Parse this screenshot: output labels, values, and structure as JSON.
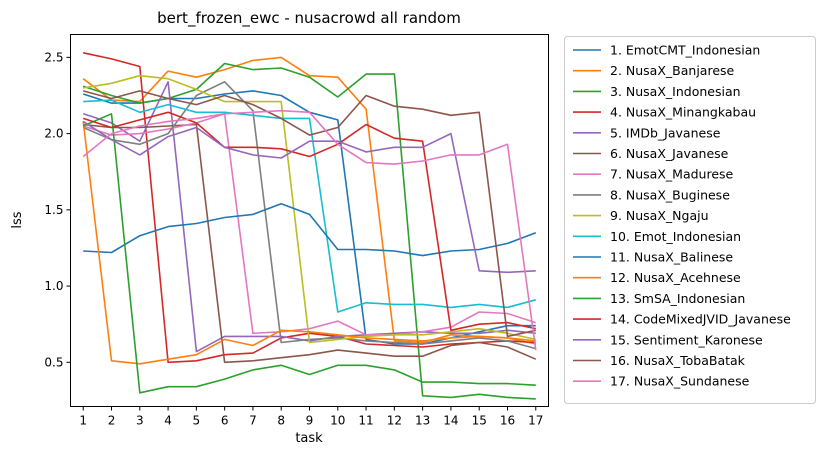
{
  "chart_data": {
    "type": "line",
    "title": "bert_frozen_ewc - nusacrowd all random",
    "xlabel": "task",
    "ylabel": "lss",
    "x": [
      1,
      2,
      3,
      4,
      5,
      6,
      7,
      8,
      9,
      10,
      11,
      12,
      13,
      14,
      15,
      16,
      17
    ],
    "xlim": [
      0.55,
      17.45
    ],
    "ylim": [
      0.21,
      2.65
    ],
    "yticks": [
      0.5,
      1.0,
      1.5,
      2.0,
      2.5
    ],
    "yticklabels": [
      "0.5",
      "1.0",
      "1.5",
      "2.0",
      "2.5"
    ],
    "xticklabels": [
      "1",
      "2",
      "3",
      "4",
      "5",
      "6",
      "7",
      "8",
      "9",
      "10",
      "11",
      "12",
      "13",
      "14",
      "15",
      "16",
      "17"
    ],
    "grid": false,
    "legend_placement": "outside-right",
    "series": [
      {
        "name": "1. EmotCMT_Indonesian",
        "color": "#1f77b4",
        "values": [
          2.26,
          2.2,
          2.2,
          2.23,
          2.23,
          2.26,
          2.28,
          2.25,
          2.14,
          2.09,
          0.65,
          0.62,
          0.62,
          0.66,
          0.7,
          0.74,
          0.74
        ]
      },
      {
        "name": "2. NusaX_Banjarese",
        "color": "#ff7f0e",
        "values": [
          2.36,
          2.22,
          2.21,
          2.41,
          2.37,
          2.42,
          2.48,
          2.5,
          2.38,
          2.37,
          2.16,
          0.64,
          0.63,
          0.68,
          0.67,
          0.66,
          0.62
        ]
      },
      {
        "name": "3. NusaX_Indonesian",
        "color": "#2ca02c",
        "values": [
          2.31,
          2.25,
          2.2,
          2.23,
          2.29,
          2.46,
          2.42,
          2.43,
          2.37,
          2.24,
          2.39,
          2.39,
          0.28,
          0.27,
          0.29,
          0.27,
          0.26
        ]
      },
      {
        "name": "4. NusaX_Minangkabau",
        "color": "#d62728",
        "values": [
          2.53,
          2.49,
          2.44,
          0.5,
          0.51,
          0.55,
          0.56,
          0.66,
          0.69,
          0.67,
          0.62,
          0.61,
          0.6,
          0.62,
          0.63,
          0.64,
          0.63
        ]
      },
      {
        "name": "5. IMDb_Javanese",
        "color": "#9467bd",
        "values": [
          2.13,
          2.07,
          1.95,
          2.34,
          0.57,
          0.67,
          0.67,
          0.67,
          0.64,
          0.67,
          0.68,
          0.69,
          0.7,
          0.69,
          0.69,
          0.71,
          0.69
        ]
      },
      {
        "name": "6. NusaX_Javanese",
        "color": "#8c564b",
        "values": [
          2.06,
          2.04,
          2.04,
          2.05,
          2.06,
          0.5,
          0.51,
          0.53,
          0.55,
          0.58,
          0.56,
          0.54,
          0.54,
          0.61,
          0.63,
          0.6,
          0.52
        ]
      },
      {
        "name": "7. NusaX_Madurese",
        "color": "#e377c2",
        "values": [
          2.05,
          1.99,
          2.0,
          2.03,
          2.07,
          2.13,
          0.69,
          0.7,
          0.72,
          0.77,
          0.68,
          0.68,
          0.7,
          0.73,
          0.83,
          0.82,
          0.76
        ]
      },
      {
        "name": "8. NusaX_Buginese",
        "color": "#7f7f7f",
        "values": [
          2.04,
          1.96,
          1.93,
          2.0,
          2.25,
          2.34,
          2.15,
          0.63,
          0.65,
          0.66,
          0.64,
          0.63,
          0.62,
          0.64,
          0.66,
          0.64,
          0.59
        ]
      },
      {
        "name": "9. NusaX_Ngaju",
        "color": "#bcbd22",
        "values": [
          2.3,
          2.33,
          2.38,
          2.36,
          2.29,
          2.21,
          2.21,
          2.21,
          0.63,
          0.65,
          0.67,
          0.68,
          0.68,
          0.7,
          0.72,
          0.69,
          0.65
        ]
      },
      {
        "name": "10. Emot_Indonesian",
        "color": "#17becf",
        "values": [
          2.21,
          2.22,
          2.14,
          2.19,
          2.14,
          2.14,
          2.12,
          2.1,
          2.1,
          0.83,
          0.89,
          0.88,
          0.88,
          0.86,
          0.88,
          0.86,
          0.91
        ]
      },
      {
        "name": "11. NusaX_Balinese",
        "color": "#1f77b4",
        "values": [
          1.23,
          1.22,
          1.33,
          1.39,
          1.41,
          1.45,
          1.47,
          1.54,
          1.47,
          1.24,
          1.24,
          1.23,
          1.2,
          1.23,
          1.24,
          1.28,
          1.35
        ]
      },
      {
        "name": "12. NusaX_Acehnese",
        "color": "#ff7f0e",
        "values": [
          2.08,
          0.51,
          0.49,
          0.52,
          0.55,
          0.65,
          0.61,
          0.71,
          0.7,
          0.68,
          0.66,
          0.65,
          0.64,
          0.66,
          0.67,
          0.66,
          0.64
        ]
      },
      {
        "name": "13. SmSA_Indonesian",
        "color": "#2ca02c",
        "values": [
          2.05,
          2.13,
          0.3,
          0.34,
          0.34,
          0.39,
          0.45,
          0.48,
          0.42,
          0.48,
          0.48,
          0.45,
          0.37,
          0.37,
          0.36,
          0.36,
          0.35
        ]
      },
      {
        "name": "14. CodeMixedJVID_Javanese",
        "color": "#d62728",
        "values": [
          2.1,
          2.04,
          2.09,
          2.14,
          2.07,
          1.91,
          1.91,
          1.9,
          1.85,
          1.93,
          2.06,
          1.97,
          1.95,
          0.71,
          0.75,
          0.76,
          0.72
        ]
      },
      {
        "name": "15. Sentiment_Karonese",
        "color": "#9467bd",
        "values": [
          2.08,
          1.96,
          1.86,
          1.98,
          2.04,
          1.91,
          1.86,
          1.84,
          1.95,
          1.95,
          1.88,
          1.91,
          1.91,
          2.0,
          1.1,
          1.09,
          1.1
        ]
      },
      {
        "name": "16. NusaX_TobaBatak",
        "color": "#8c564b",
        "values": [
          2.28,
          2.23,
          2.28,
          2.23,
          2.19,
          2.25,
          2.19,
          2.1,
          1.99,
          2.04,
          2.25,
          2.18,
          2.16,
          2.12,
          2.14,
          0.67,
          0.71
        ]
      },
      {
        "name": "17. NusaX_Sundanese",
        "color": "#e377c2",
        "values": [
          1.85,
          2.0,
          2.05,
          2.08,
          2.1,
          2.13,
          2.14,
          2.15,
          2.14,
          1.93,
          1.81,
          1.8,
          1.82,
          1.86,
          1.86,
          1.93,
          0.58
        ]
      }
    ]
  }
}
